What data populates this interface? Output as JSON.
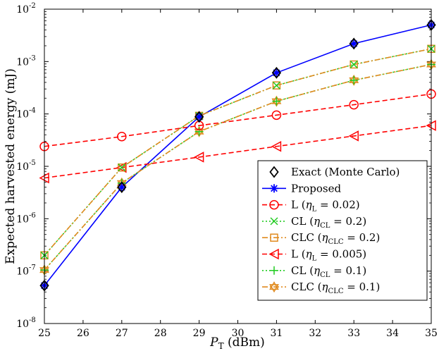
{
  "chart_data": {
    "type": "line",
    "xscale": "linear",
    "yscale": "log",
    "xlabel": "P_T (dBm)",
    "xlabel_main": "P",
    "xlabel_sub": "T",
    "xlabel_unit": " (dBm)",
    "ylabel": "Expected harvested energy (mJ)",
    "xlim": [
      25,
      35
    ],
    "ylim": [
      1e-08,
      0.01
    ],
    "xticks": [
      25,
      26,
      27,
      28,
      29,
      30,
      31,
      32,
      33,
      34,
      35
    ],
    "yticks": [
      {
        "value": 1e-08,
        "base": "10",
        "exp": "-8"
      },
      {
        "value": 1e-07,
        "base": "10",
        "exp": "-7"
      },
      {
        "value": 1e-06,
        "base": "10",
        "exp": "-6"
      },
      {
        "value": 1e-05,
        "base": "10",
        "exp": "-5"
      },
      {
        "value": 0.0001,
        "base": "10",
        "exp": "-4"
      },
      {
        "value": 0.001,
        "base": "10",
        "exp": "-3"
      },
      {
        "value": 0.01,
        "base": "10",
        "exp": "-2"
      }
    ],
    "x": [
      25,
      27,
      29,
      31,
      33,
      35
    ],
    "legend_position": "bottom-right",
    "series": [
      {
        "name": "Exact (Monte Carlo)",
        "label": {
          "main": "Exact (Monte Carlo)"
        },
        "color": "#000000",
        "line": "none",
        "marker": "diamond",
        "values": [
          5.3e-08,
          4e-06,
          8.8e-05,
          0.00061,
          0.0022,
          0.005
        ]
      },
      {
        "name": "Proposed",
        "label": {
          "main": "Proposed"
        },
        "color": "#0000ff",
        "line": "solid",
        "marker": "asterisk",
        "values": [
          5.3e-08,
          4e-06,
          8.8e-05,
          0.00061,
          0.0022,
          0.005
        ]
      },
      {
        "name": "L (eta_L = 0.02)",
        "label": {
          "main": "L (",
          "sym": "η",
          "sub": "L",
          "rest": " = 0.02)"
        },
        "color": "#ff0000",
        "line": "dashed",
        "marker": "circle",
        "values": [
          2.4e-05,
          3.7e-05,
          6e-05,
          9.5e-05,
          0.00015,
          0.00024
        ]
      },
      {
        "name": "CL (eta_CL = 0.2)",
        "label": {
          "main": "CL (",
          "sym": "η",
          "sub": "CL",
          "rest": " = 0.2)"
        },
        "color": "#22cc22",
        "line": "dotted",
        "marker": "x",
        "values": [
          2e-07,
          9.5e-06,
          9.2e-05,
          0.00035,
          0.00088,
          0.00175
        ]
      },
      {
        "name": "CLC (eta_CLC = 0.2)",
        "label": {
          "main": "CLC (",
          "sym": "η",
          "sub": "CLC",
          "rest": " = 0.2)"
        },
        "color": "#e08a1e",
        "line": "dashdot",
        "marker": "square",
        "values": [
          2e-07,
          9.5e-06,
          9.2e-05,
          0.00035,
          0.00088,
          0.00175
        ]
      },
      {
        "name": "L (eta_L = 0.005)",
        "label": {
          "main": "L (",
          "sym": "η",
          "sub": "L",
          "rest": " = 0.005)"
        },
        "color": "#ff0000",
        "line": "dashed",
        "marker": "triangle-left",
        "values": [
          6e-06,
          9.5e-06,
          1.5e-05,
          2.4e-05,
          3.8e-05,
          6e-05
        ]
      },
      {
        "name": "CL (eta_CL = 0.1)",
        "label": {
          "main": "CL (",
          "sym": "η",
          "sub": "CL",
          "rest": " = 0.1)"
        },
        "color": "#22cc22",
        "line": "dotted",
        "marker": "plus",
        "values": [
          1.05e-07,
          4.8e-06,
          4.6e-05,
          0.000175,
          0.00044,
          0.00088
        ]
      },
      {
        "name": "CLC (eta_CLC = 0.1)",
        "label": {
          "main": "CLC (",
          "sym": "η",
          "sub": "CLC",
          "rest": " = 0.1)"
        },
        "color": "#e08a1e",
        "line": "dashdot",
        "marker": "hexagram",
        "values": [
          1.05e-07,
          4.8e-06,
          4.6e-05,
          0.000175,
          0.00044,
          0.00088
        ]
      }
    ]
  }
}
